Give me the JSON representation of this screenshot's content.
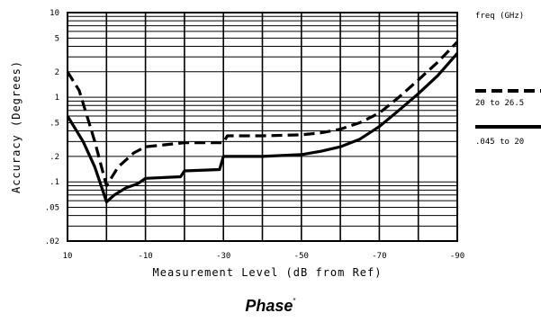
{
  "chart_data": {
    "type": "line",
    "title": "",
    "caption": "Phase",
    "xlabel": "Measurement Level (dB from Ref)",
    "ylabel": "Accuracy (Degrees)",
    "x_ticks": [
      "10",
      "0",
      "-10",
      "-20",
      "-30",
      "-40",
      "-50",
      "-60",
      "-70",
      "-80",
      "-90"
    ],
    "x_tick_labels": [
      "10",
      "",
      "-10",
      "",
      "-30",
      "",
      "-50",
      "",
      "-70",
      "",
      "-90"
    ],
    "y_scale": "log",
    "y_ticks": [
      ".02",
      ".05",
      ".1",
      ".2",
      ".5",
      "1",
      "2",
      "5",
      "10"
    ],
    "xlim": [
      10,
      -90
    ],
    "ylim": [
      0.02,
      10
    ],
    "grid": true,
    "legend_title": "freq (GHz)",
    "series": [
      {
        "name": "20 to 26.5",
        "style": "dashed",
        "x": [
          10,
          7,
          3,
          0,
          -3,
          -7,
          -10,
          -20,
          -30,
          -31,
          -40,
          -50,
          -55,
          -60,
          -65,
          -70,
          -75,
          -80,
          -85,
          -90
        ],
        "y": [
          2.0,
          1.2,
          0.3,
          0.09,
          0.15,
          0.22,
          0.26,
          0.29,
          0.29,
          0.35,
          0.35,
          0.36,
          0.38,
          0.42,
          0.5,
          0.65,
          1.0,
          1.6,
          2.6,
          4.5
        ]
      },
      {
        "name": ".045 to 20",
        "style": "solid",
        "x": [
          10,
          6,
          3,
          1,
          0,
          -2,
          -5,
          -8,
          -10,
          -19,
          -20,
          -29,
          -30,
          -40,
          -50,
          -55,
          -60,
          -65,
          -70,
          -75,
          -80,
          -85,
          -90
        ],
        "y": [
          0.6,
          0.3,
          0.15,
          0.08,
          0.058,
          0.07,
          0.085,
          0.095,
          0.11,
          0.115,
          0.135,
          0.14,
          0.2,
          0.2,
          0.21,
          0.23,
          0.26,
          0.32,
          0.45,
          0.7,
          1.1,
          1.8,
          3.3
        ]
      }
    ]
  }
}
